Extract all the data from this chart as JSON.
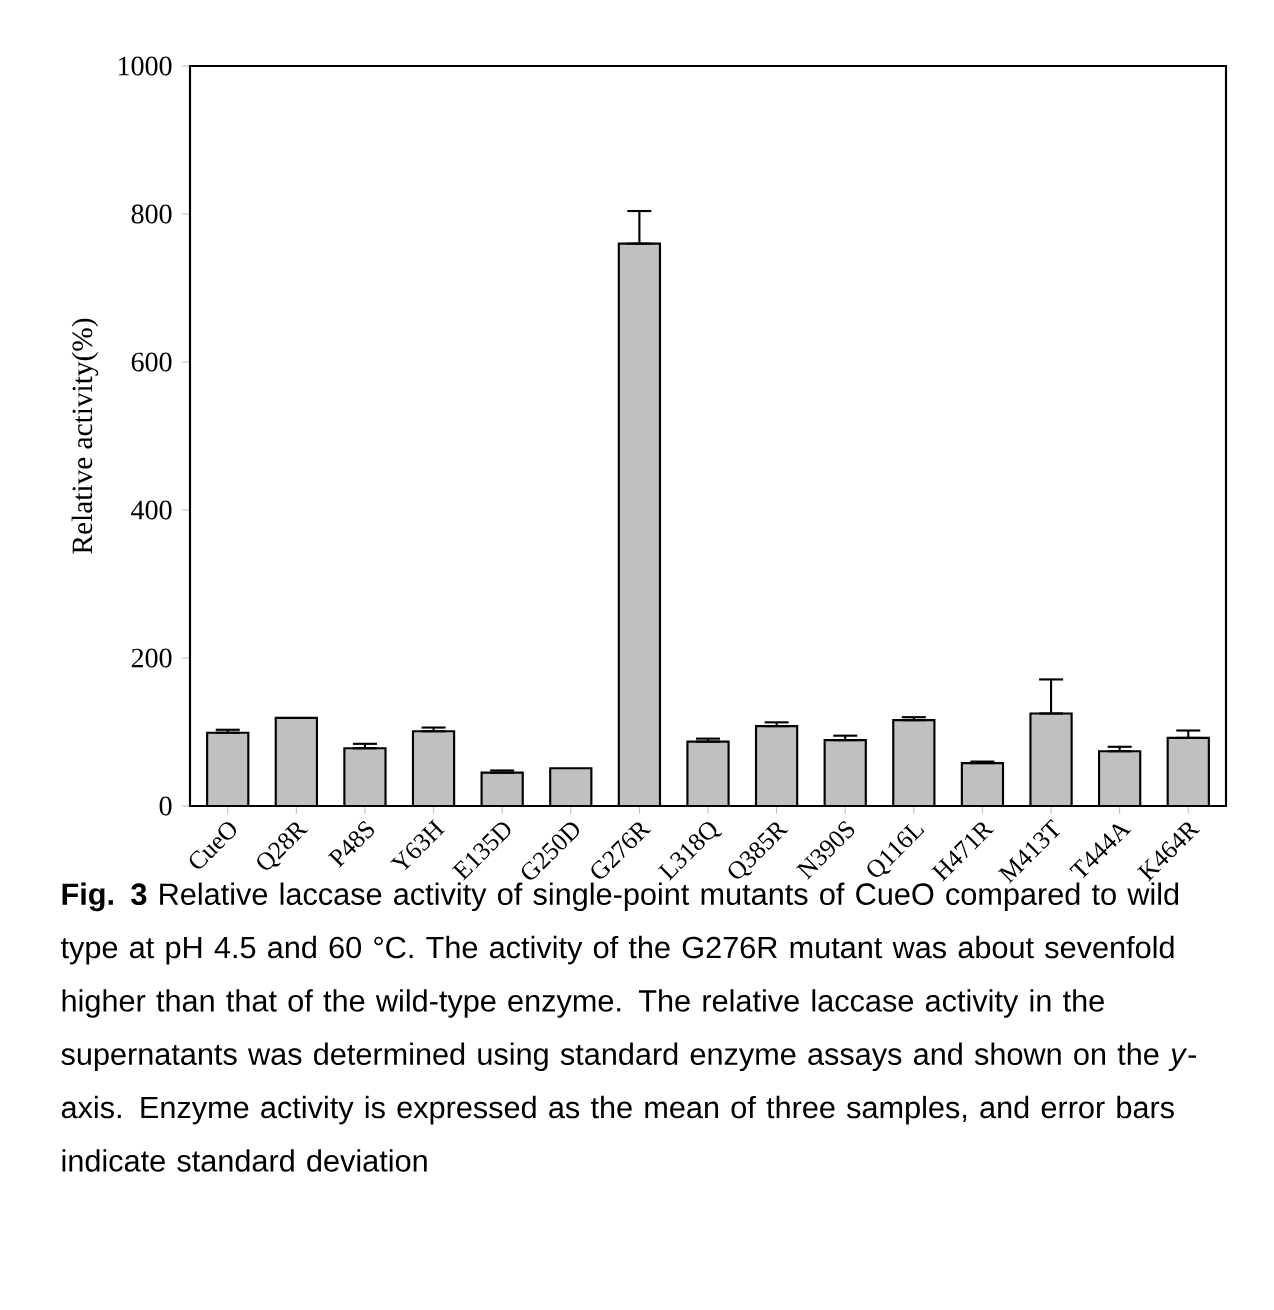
{
  "chart_data": {
    "type": "bar",
    "ylabel": "Relative activity(%)",
    "categories": [
      "CueO",
      "Q28R",
      "P48S",
      "Y63H",
      "E135D",
      "G250D",
      "G276R",
      "L318Q",
      "Q385R",
      "N390S",
      "Q116L",
      "H471R",
      "M413T",
      "T444A",
      "K464R"
    ],
    "values": [
      99,
      119,
      78,
      101,
      45,
      51,
      760,
      87,
      108,
      89,
      116,
      58,
      125,
      74,
      92
    ],
    "errors": [
      [
        99,
        103
      ],
      null,
      [
        78,
        84
      ],
      [
        101,
        106
      ],
      [
        45,
        48
      ],
      null,
      [
        760,
        804
      ],
      [
        87,
        91
      ],
      [
        108,
        113
      ],
      [
        89,
        95
      ],
      [
        116,
        120
      ],
      [
        58,
        60
      ],
      [
        125,
        171
      ],
      [
        74,
        80
      ],
      [
        92,
        102
      ]
    ],
    "color": "#c0c0c0",
    "ylim": [
      0,
      1000
    ],
    "yticks": [
      0,
      200,
      400,
      600,
      800,
      1000
    ],
    "annotations": [
      "**Fig. 3** Relative laccase activity of single-point mutants of CueO compared to wild type at pH 4.5 and 60 °C. The activity of the G276R mutant was about sevenfold higher than that of the wild-type enzyme. The relative laccase activity in the supernatants was determined using standard enzyme assays and shown on the *y*-axis. Enzyme activity is expressed as the mean of three samples, and error bars indicate standard deviation"
    ]
  }
}
